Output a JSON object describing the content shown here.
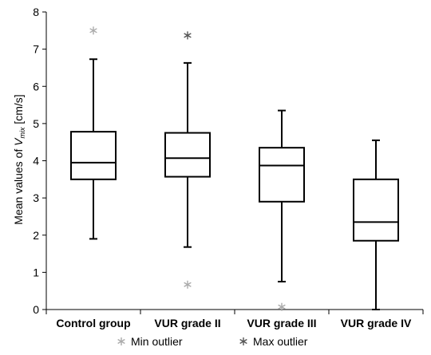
{
  "chart_data": {
    "type": "box",
    "ylabel_prefix": "Mean values of ",
    "ylabel_var": "V",
    "ylabel_sub": "mix",
    "ylabel_suffix": " [cm/s]",
    "ylim": [
      0,
      8
    ],
    "yticks": [
      0,
      1,
      2,
      3,
      4,
      5,
      6,
      7,
      8
    ],
    "grid": false,
    "categories": [
      "Control group",
      "VUR grade II",
      "VUR grade III",
      "VUR grade IV"
    ],
    "boxes": [
      {
        "whisker_low": 1.9,
        "q1": 3.5,
        "median": 3.95,
        "q3": 4.78,
        "whisker_high": 6.73,
        "min_outliers": [
          7.5
        ],
        "max_outliers": []
      },
      {
        "whisker_low": 1.68,
        "q1": 3.57,
        "median": 4.07,
        "q3": 4.75,
        "whisker_high": 6.63,
        "min_outliers": [
          0.67
        ],
        "max_outliers": [
          7.37
        ]
      },
      {
        "whisker_low": 0.75,
        "q1": 2.9,
        "median": 3.87,
        "q3": 4.35,
        "whisker_high": 5.35,
        "min_outliers": [
          0.07
        ],
        "max_outliers": []
      },
      {
        "whisker_low": 0.0,
        "q1": 1.85,
        "median": 2.35,
        "q3": 3.5,
        "whisker_high": 4.55,
        "min_outliers": [],
        "max_outliers": []
      }
    ],
    "legend": {
      "position": "bottom",
      "entries": [
        {
          "label": "Min outlier",
          "marker": "light-asterisk",
          "color": "#aaaaaa"
        },
        {
          "label": "Max outlier",
          "marker": "dark-asterisk",
          "color": "#555555"
        }
      ]
    },
    "colors": {
      "box_stroke": "#000000",
      "min_outlier": "#aaaaaa",
      "max_outlier": "#555555"
    }
  }
}
